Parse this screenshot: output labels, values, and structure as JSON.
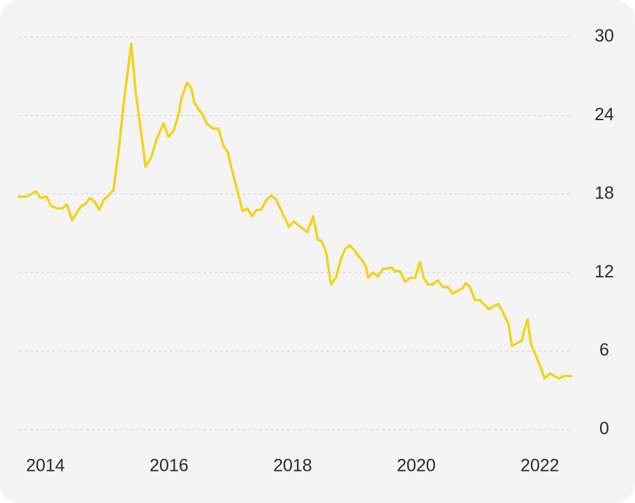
{
  "chart_data": {
    "type": "line",
    "x": [
      2013.57,
      2013.69,
      2013.77,
      2013.85,
      2013.92,
      2014.02,
      2014.09,
      2014.19,
      2014.27,
      2014.35,
      2014.43,
      2014.51,
      2014.58,
      2014.64,
      2014.72,
      2014.8,
      2014.87,
      2014.95,
      2015.02,
      2015.1,
      2015.19,
      2015.28,
      2015.39,
      2015.46,
      2015.54,
      2015.62,
      2015.71,
      2015.8,
      2015.91,
      2015.99,
      2016.07,
      2016.15,
      2016.2,
      2016.29,
      2016.36,
      2016.41,
      2016.49,
      2016.54,
      2016.61,
      2016.71,
      2016.8,
      2016.88,
      2016.95,
      2017.02,
      2017.11,
      2017.19,
      2017.27,
      2017.34,
      2017.42,
      2017.49,
      2017.57,
      2017.65,
      2017.73,
      2017.79,
      2017.85,
      2017.94,
      2018.02,
      2018.1,
      2018.18,
      2018.24,
      2018.33,
      2018.41,
      2018.47,
      2018.54,
      2018.62,
      2018.7,
      2018.78,
      2018.85,
      2018.92,
      2019.0,
      2019.06,
      2019.13,
      2019.19,
      2019.22,
      2019.3,
      2019.38,
      2019.46,
      2019.54,
      2019.6,
      2019.66,
      2019.74,
      2019.82,
      2019.9,
      2019.98,
      2020.06,
      2020.12,
      2020.19,
      2020.27,
      2020.35,
      2020.43,
      2020.51,
      2020.59,
      2020.67,
      2020.75,
      2020.8,
      2020.87,
      2020.95,
      2021.03,
      2021.11,
      2021.18,
      2021.24,
      2021.33,
      2021.41,
      2021.49,
      2021.55,
      2021.63,
      2021.71,
      2021.74,
      2021.8,
      2021.86,
      2021.94,
      2022.01,
      2022.08,
      2022.16,
      2022.23,
      2022.31,
      2022.39,
      2022.5
    ],
    "series": [
      {
        "color": "#f2d31b",
        "values": [
          17.8,
          17.8,
          18.0,
          18.2,
          17.7,
          17.8,
          17.1,
          16.9,
          16.9,
          17.2,
          16.0,
          16.6,
          17.1,
          17.2,
          17.7,
          17.4,
          16.8,
          17.6,
          17.9,
          18.3,
          21.5,
          25.5,
          29.5,
          25.8,
          23.0,
          20.1,
          20.8,
          22.2,
          23.4,
          22.4,
          22.8,
          24.0,
          25.3,
          26.5,
          26.1,
          25.0,
          24.4,
          24.1,
          23.4,
          23.0,
          23.0,
          21.7,
          21.2,
          19.8,
          18.2,
          16.7,
          16.9,
          16.3,
          16.8,
          16.8,
          17.5,
          17.9,
          17.6,
          17.0,
          16.4,
          15.5,
          15.9,
          15.6,
          15.3,
          15.1,
          16.3,
          14.5,
          14.4,
          13.6,
          11.1,
          11.6,
          13.0,
          13.8,
          14.1,
          13.7,
          13.3,
          12.9,
          12.4,
          11.6,
          12.0,
          11.7,
          12.3,
          12.3,
          12.4,
          12.1,
          12.1,
          11.3,
          11.6,
          11.6,
          12.8,
          11.6,
          11.1,
          11.1,
          11.4,
          10.9,
          10.9,
          10.4,
          10.6,
          10.8,
          11.2,
          10.9,
          9.9,
          9.9,
          9.5,
          9.2,
          9.4,
          9.6,
          8.9,
          8.1,
          6.4,
          6.6,
          6.8,
          7.5,
          8.4,
          6.5,
          5.6,
          4.8,
          3.9,
          4.3,
          4.1,
          3.9,
          4.1,
          4.1
        ]
      }
    ],
    "xlim": [
      2013.57,
      2022.5
    ],
    "xticks": [
      2014,
      2016,
      2018,
      2020,
      2022
    ],
    "ylim": [
      0,
      30
    ],
    "yticks": [
      0,
      6,
      12,
      18,
      24,
      30
    ],
    "grid": true
  }
}
